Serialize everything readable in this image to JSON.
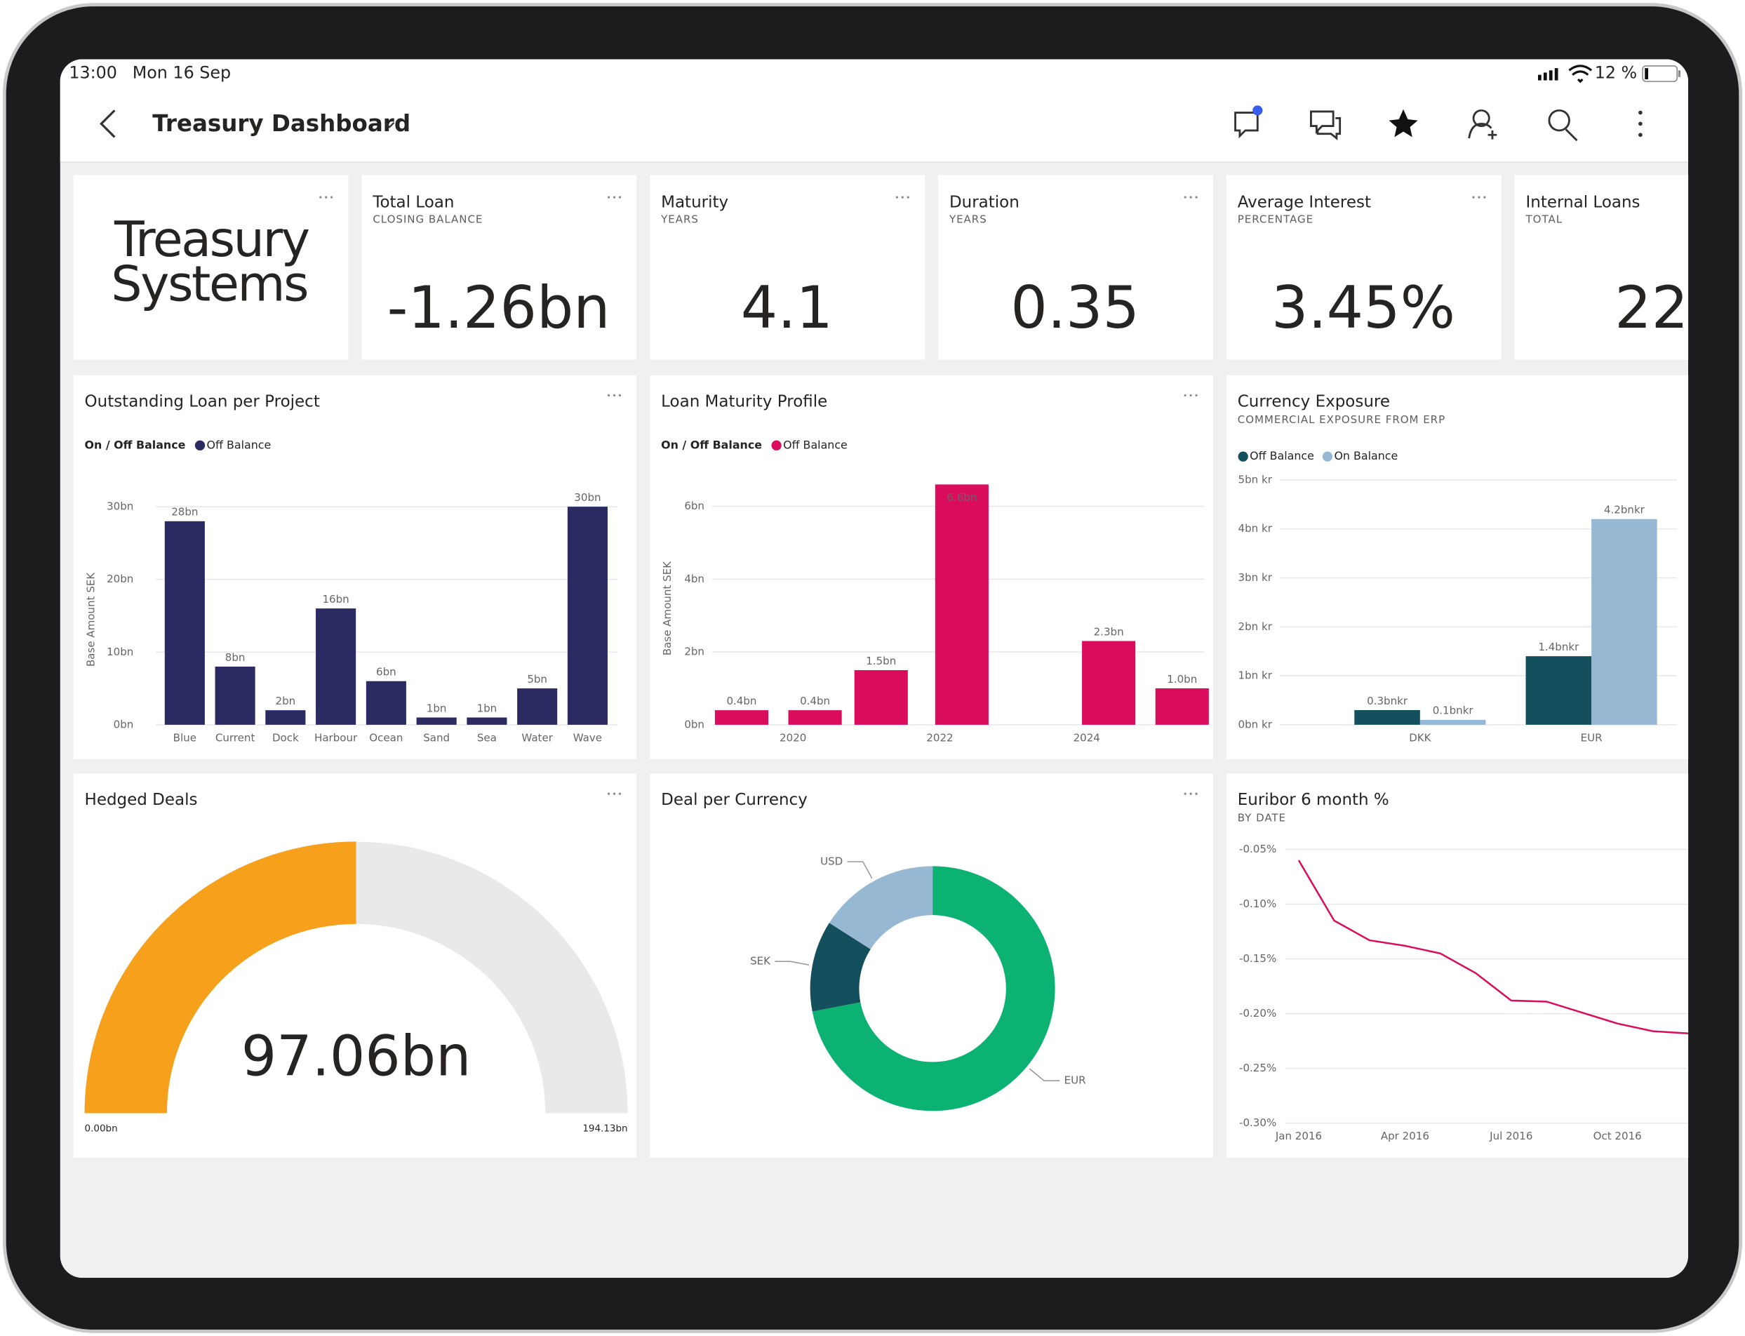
{
  "status_bar": {
    "time": "13:00",
    "date": "Mon 16 Sep",
    "battery": "12 %"
  },
  "header": {
    "title": "Treasury Dashboard"
  },
  "logo": {
    "lines": [
      "Treasury",
      "Systems"
    ]
  },
  "cards": [
    {
      "title": "Total Loan",
      "subtitle": "CLOSING BALANCE",
      "value": "-1.26bn"
    },
    {
      "title": "Maturity",
      "subtitle": "YEARS",
      "value": "4.1"
    },
    {
      "title": "Duration",
      "subtitle": "YEARS",
      "value": "0.35"
    },
    {
      "title": "Average Interest",
      "subtitle": "PERCENTAGE",
      "value": "3.45%"
    },
    {
      "title": "Internal Loans",
      "subtitle": "TOTAL",
      "value": "22"
    }
  ],
  "chart_data": [
    {
      "type": "bar",
      "title": "Outstanding Loan per Project",
      "legend_title": "On / Off Balance",
      "ylabel": "Base Amount SEK",
      "categories": [
        "Blue",
        "Current",
        "Dock",
        "Harbour",
        "Ocean",
        "Sand",
        "Sea",
        "Water",
        "Wave"
      ],
      "series": [
        {
          "name": "Off Balance",
          "color": "#2b2a63",
          "values": [
            28,
            8,
            2,
            16,
            6,
            1,
            1,
            5,
            30
          ],
          "value_labels": [
            "28bn",
            "8bn",
            "2bn",
            "16bn",
            "6bn",
            "1bn",
            "1bn",
            "5bn",
            "30bn"
          ]
        }
      ],
      "ylim": [
        0,
        32
      ],
      "yticks": [
        {
          "value": 0,
          "label": "0bn"
        },
        {
          "value": 10,
          "label": "10bn"
        },
        {
          "value": 20,
          "label": "20bn"
        },
        {
          "value": 30,
          "label": "30bn"
        }
      ],
      "grid": true
    },
    {
      "type": "bar",
      "title": "Loan Maturity Profile",
      "legend_title": "On / Off Balance",
      "ylabel": "Base Amount SEK",
      "x": [
        2019.3,
        2020.3,
        2021.2,
        2022.3,
        2024.3,
        2025.3
      ],
      "xlim": [
        2018.9,
        2025.6
      ],
      "xticks": [
        2020,
        2022,
        2024
      ],
      "series": [
        {
          "name": "Off Balance",
          "color": "#d90d5c",
          "values": [
            0.4,
            0.4,
            1.5,
            6.6,
            2.3,
            1.0
          ],
          "value_labels": [
            "0.4bn",
            "0.4bn",
            "1.5bn",
            "6.6bn",
            "2.3bn",
            "1.0bn"
          ]
        }
      ],
      "ylim": [
        0,
        7
      ],
      "yticks": [
        {
          "value": 0,
          "label": "0bn"
        },
        {
          "value": 2,
          "label": "2bn"
        },
        {
          "value": 4,
          "label": "4bn"
        },
        {
          "value": 6,
          "label": "6bn"
        }
      ],
      "grid": true
    },
    {
      "type": "bar",
      "title": "Currency Exposure",
      "subtitle": "COMMERCIAL EXPOSURE FROM ERP",
      "categories": [
        "DKK",
        "EUR"
      ],
      "series": [
        {
          "name": "Off Balance",
          "color": "#134f5c",
          "values": [
            0.3,
            1.4
          ],
          "value_labels": [
            "0.3bnkr",
            "1.4bnkr"
          ]
        },
        {
          "name": "On Balance",
          "color": "#97b8d3",
          "values": [
            0.1,
            4.2
          ],
          "value_labels": [
            "0.1bnkr",
            "4.2bnkr"
          ]
        }
      ],
      "ylim": [
        0,
        5
      ],
      "yticks": [
        {
          "value": 0,
          "label": "0bn kr"
        },
        {
          "value": 1,
          "label": "1bn kr"
        },
        {
          "value": 2,
          "label": "2bn kr"
        },
        {
          "value": 3,
          "label": "3bn kr"
        },
        {
          "value": 4,
          "label": "4bn kr"
        },
        {
          "value": 5,
          "label": "5bn kr"
        }
      ],
      "grid": true
    },
    {
      "type": "gauge",
      "title": "Hedged Deals",
      "value": 97.06,
      "value_label": "97.06bn",
      "min": 0,
      "min_label": "0.00bn",
      "max": 194.13,
      "max_label": "194.13bn",
      "color": "#f7a01c",
      "track_color": "#e9e9e9"
    },
    {
      "type": "donut",
      "title": "Deal per Currency",
      "categories": [
        "EUR",
        "SEK",
        "USD"
      ],
      "values": [
        72,
        12,
        16
      ],
      "colors": [
        "#0bb271",
        "#134f5c",
        "#97b8d3"
      ]
    },
    {
      "type": "line",
      "title": "Euribor 6 month %",
      "subtitle": "BY DATE",
      "x": [
        "2016-01",
        "2016-02",
        "2016-03",
        "2016-04",
        "2016-05",
        "2016-06",
        "2016-07",
        "2016-08",
        "2016-09",
        "2016-10",
        "2016-11",
        "2016-12"
      ],
      "xlim": [
        "2016-01",
        "2016-12"
      ],
      "xticks": [
        {
          "value": "2016-01",
          "label": "Jan 2016"
        },
        {
          "value": "2016-04",
          "label": "Apr 2016"
        },
        {
          "value": "2016-07",
          "label": "Jul 2016"
        },
        {
          "value": "2016-10",
          "label": "Oct 2016"
        }
      ],
      "values": [
        -0.06,
        -0.115,
        -0.133,
        -0.138,
        -0.145,
        -0.163,
        -0.188,
        -0.189,
        -0.199,
        -0.209,
        -0.216,
        -0.218
      ],
      "color": "#d90d5c",
      "ylim": [
        -0.3,
        -0.05
      ],
      "yticks": [
        {
          "value": -0.05,
          "label": "-0.05%"
        },
        {
          "value": -0.1,
          "label": "-0.10%"
        },
        {
          "value": -0.15,
          "label": "-0.15%"
        },
        {
          "value": -0.2,
          "label": "-0.20%"
        },
        {
          "value": -0.25,
          "label": "-0.25%"
        },
        {
          "value": -0.3,
          "label": "-0.30%"
        }
      ],
      "grid": true
    }
  ]
}
